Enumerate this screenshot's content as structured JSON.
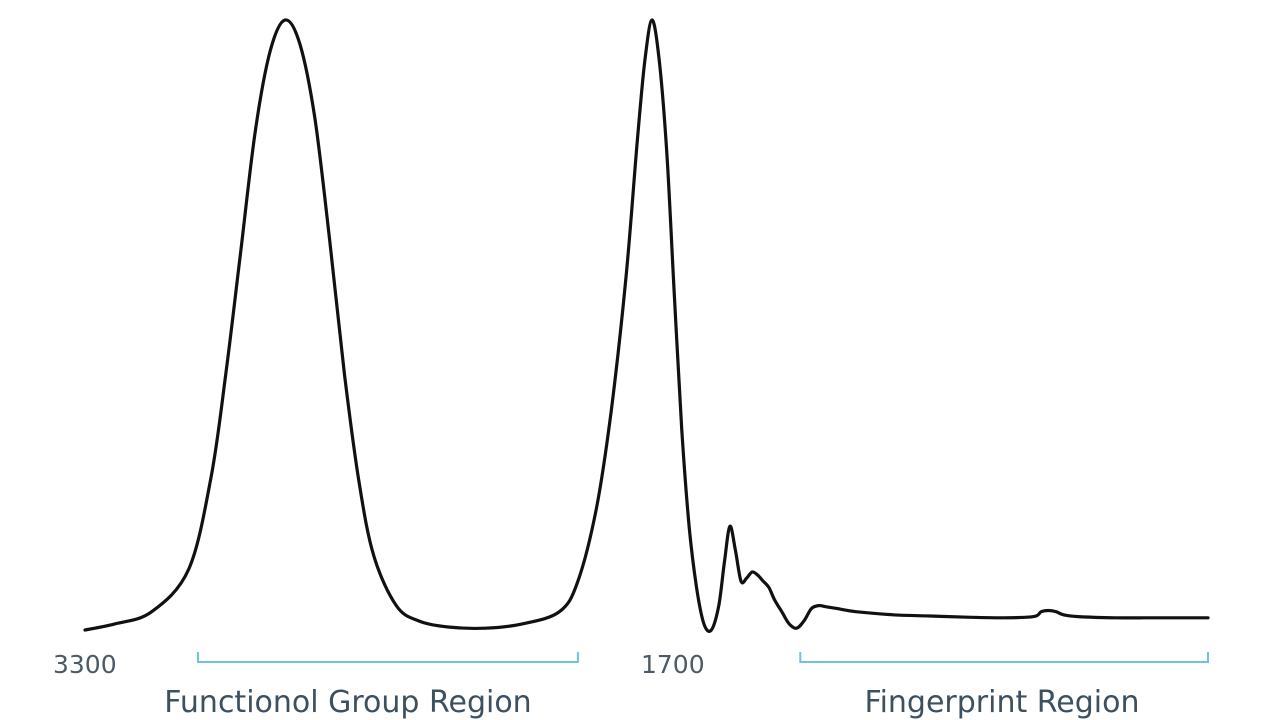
{
  "chart_data": {
    "type": "line",
    "title": "",
    "xlabel": "",
    "ylabel": "",
    "x_tick_labels": [
      "3300",
      "1700"
    ],
    "regions": [
      {
        "label": "Functionol Group Region",
        "from": 3075,
        "to": 2050
      },
      {
        "label": "Fingerprint Region",
        "from": 1450,
        "to": 350
      }
    ],
    "xlim": [
      3380,
      350
    ],
    "ylim": [
      0,
      1
    ],
    "series": [
      {
        "x": [
          3380,
          3300,
          3200,
          3100,
          3040,
          3000,
          2960,
          2920,
          2880,
          2840,
          2800,
          2760,
          2720,
          2680,
          2640,
          2600,
          2540,
          2480,
          2400,
          2300,
          2200,
          2100,
          2050,
          2000,
          1960,
          1920,
          1890,
          1870,
          1850,
          1830,
          1810,
          1790,
          1770,
          1750,
          1730,
          1710,
          1690,
          1670,
          1655,
          1640,
          1625,
          1610,
          1595,
          1580,
          1565,
          1550,
          1535,
          1520,
          1500,
          1480,
          1460,
          1440,
          1420,
          1400,
          1380,
          1350,
          1300,
          1200,
          1100,
          1000,
          900,
          820,
          800,
          780,
          760,
          740,
          700,
          600,
          500,
          400,
          350
        ],
        "y": [
          0.0,
          0.01,
          0.03,
          0.1,
          0.25,
          0.42,
          0.62,
          0.82,
          0.95,
          1.0,
          0.96,
          0.84,
          0.64,
          0.42,
          0.24,
          0.12,
          0.04,
          0.015,
          0.005,
          0.003,
          0.01,
          0.03,
          0.08,
          0.2,
          0.36,
          0.58,
          0.8,
          0.93,
          1.0,
          0.93,
          0.78,
          0.55,
          0.33,
          0.17,
          0.07,
          0.01,
          0.0,
          0.04,
          0.11,
          0.17,
          0.13,
          0.08,
          0.085,
          0.095,
          0.09,
          0.08,
          0.07,
          0.05,
          0.03,
          0.01,
          0.003,
          0.015,
          0.035,
          0.04,
          0.038,
          0.035,
          0.03,
          0.025,
          0.023,
          0.021,
          0.02,
          0.022,
          0.03,
          0.032,
          0.03,
          0.025,
          0.022,
          0.02,
          0.02,
          0.02,
          0.02
        ]
      }
    ],
    "grid": false,
    "legend": "none",
    "colors": {
      "line": "#111111",
      "bracket": "#6ec3dd",
      "tick_text": "#4a5a68",
      "region_text": "#3d5060"
    }
  }
}
